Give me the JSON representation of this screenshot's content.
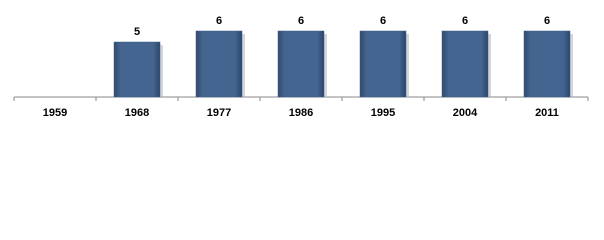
{
  "chart_data": {
    "type": "bar",
    "categories": [
      "1959",
      "1968",
      "1977",
      "1986",
      "1995",
      "2004",
      "2011"
    ],
    "values": [
      null,
      5,
      6,
      6,
      6,
      6,
      6
    ],
    "color": "#3e5f8a",
    "ylim": [
      0,
      6
    ]
  }
}
